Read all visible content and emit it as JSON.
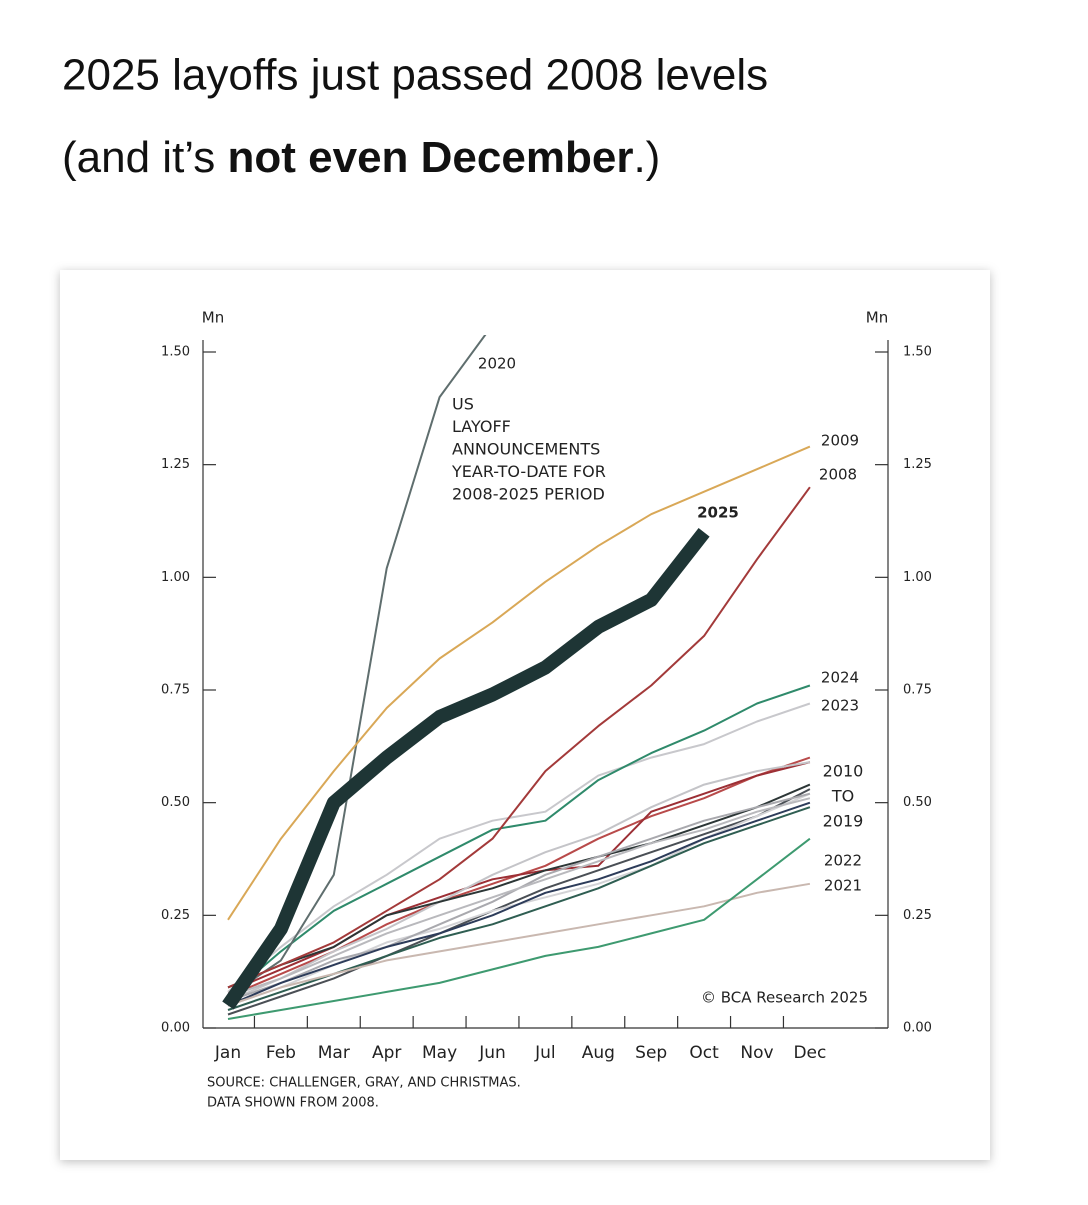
{
  "headline": {
    "line1": "2025 layoffs just passed 2008 levels",
    "line2_before": "(and it’s",
    "line2_bold": "not even December",
    "line2_after": ".)"
  },
  "chart_data": {
    "type": "line",
    "annotation": [
      "US",
      "LAYOFF",
      "ANNOUNCEMENTS",
      "YEAR-TO-DATE FOR",
      "2008-2025 PERIOD"
    ],
    "group_label": [
      "2010",
      "TO",
      "2019"
    ],
    "y_unit": "Mn",
    "y2_unit": "Mn",
    "source": [
      "SOURCE: CHALLENGER, GRAY, AND CHRISTMAS.",
      "DATA SHOWN FROM 2008."
    ],
    "credit": "© BCA Research 2025",
    "categories": [
      "Jan",
      "Feb",
      "Mar",
      "Apr",
      "May",
      "Jun",
      "Jul",
      "Aug",
      "Sep",
      "Oct",
      "Nov",
      "Dec"
    ],
    "ylim": [
      0,
      1.5
    ],
    "y2lim": [
      0,
      1.5
    ],
    "yticks": [
      {
        "value": 0,
        "label": "0.00"
      },
      0.25,
      {
        "value": 0.5,
        "label": "0.50"
      },
      0.75,
      {
        "value": 1,
        "label": "1.00"
      },
      1.25,
      {
        "value": 1.5,
        "label": "1.50"
      }
    ],
    "y2ticks": [
      {
        "value": 0,
        "label": "0.00"
      },
      0.25,
      {
        "value": 0.5,
        "label": "0.50"
      },
      0.75,
      {
        "value": 1,
        "label": "1.00"
      },
      1.25,
      {
        "value": 1.5,
        "label": "1.50"
      }
    ],
    "series": [
      {
        "color": "#4a4f55",
        "values": [
          0.03,
          0.07,
          0.11,
          0.16,
          0.21,
          0.26,
          0.31,
          0.35,
          0.39,
          0.43,
          0.47,
          0.53
        ]
      },
      {
        "color": "#b84a4a",
        "values": [
          0.07,
          0.12,
          0.17,
          0.23,
          0.28,
          0.32,
          0.36,
          0.42,
          0.47,
          0.51,
          0.56,
          0.6
        ]
      },
      {
        "color": "#9c2f35",
        "values": [
          0.08,
          0.13,
          0.18,
          0.25,
          0.29,
          0.33,
          0.35,
          0.36,
          0.48,
          0.52,
          0.56,
          0.59
        ]
      },
      {
        "color": "#c4c4c8",
        "values": [
          0.06,
          0.11,
          0.17,
          0.22,
          0.28,
          0.34,
          0.39,
          0.43,
          0.49,
          0.54,
          0.57,
          0.59
        ]
      },
      {
        "color": "#2c3636",
        "values": [
          0.09,
          0.14,
          0.18,
          0.25,
          0.28,
          0.31,
          0.35,
          0.38,
          0.41,
          0.45,
          0.49,
          0.54
        ]
      },
      {
        "color": "#d3d3d6",
        "values": [
          0.05,
          0.09,
          0.14,
          0.19,
          0.22,
          0.26,
          0.29,
          0.32,
          0.36,
          0.42,
          0.47,
          0.52
        ]
      },
      {
        "color": "#2f5e52",
        "values": [
          0.04,
          0.08,
          0.12,
          0.16,
          0.2,
          0.23,
          0.27,
          0.31,
          0.36,
          0.41,
          0.45,
          0.49
        ]
      },
      {
        "color": "#a9a9ae",
        "values": [
          0.06,
          0.1,
          0.15,
          0.18,
          0.23,
          0.28,
          0.34,
          0.38,
          0.42,
          0.46,
          0.49,
          0.52
        ]
      },
      {
        "color": "#2d3c5a",
        "values": [
          0.05,
          0.1,
          0.14,
          0.18,
          0.21,
          0.25,
          0.3,
          0.33,
          0.37,
          0.42,
          0.46,
          0.5
        ]
      },
      {
        "color": "#b9b9bd",
        "values": [
          0.07,
          0.11,
          0.16,
          0.21,
          0.25,
          0.29,
          0.33,
          0.37,
          0.41,
          0.44,
          0.48,
          0.51
        ]
      },
      {
        "name": "2021",
        "color": "#c9b8b0",
        "values": [
          0.05,
          0.09,
          0.12,
          0.15,
          0.17,
          0.19,
          0.21,
          0.23,
          0.25,
          0.27,
          0.3,
          0.32
        ]
      },
      {
        "name": "2022",
        "color": "#3e9a70",
        "values": [
          0.02,
          0.04,
          0.06,
          0.08,
          0.1,
          0.13,
          0.16,
          0.18,
          0.21,
          0.24,
          0.33,
          0.42
        ]
      },
      {
        "name": "2023",
        "color": "#c8c8cc",
        "values": [
          0.08,
          0.18,
          0.27,
          0.34,
          0.42,
          0.46,
          0.48,
          0.56,
          0.6,
          0.63,
          0.68,
          0.72
        ]
      },
      {
        "name": "2024",
        "color": "#2f8a6b",
        "values": [
          0.07,
          0.17,
          0.26,
          0.32,
          0.38,
          0.44,
          0.46,
          0.55,
          0.61,
          0.66,
          0.72,
          0.76
        ]
      },
      {
        "name": "2020",
        "color": "#5f6e6e",
        "values": [
          0.07,
          0.15,
          0.34,
          1.02,
          1.4,
          1.56,
          null,
          null,
          null,
          null,
          null,
          null
        ]
      },
      {
        "name": "2008",
        "color": "#a33a3a",
        "values": [
          0.09,
          0.14,
          0.19,
          0.26,
          0.33,
          0.42,
          0.57,
          0.67,
          0.76,
          0.87,
          1.04,
          1.2
        ]
      },
      {
        "name": "2009",
        "color": "#d9a857",
        "values": [
          0.24,
          0.42,
          0.57,
          0.71,
          0.82,
          0.9,
          0.99,
          1.07,
          1.14,
          1.19,
          1.24,
          1.29
        ]
      },
      {
        "name": "2025",
        "color": "#1e3535",
        "values": [
          0.05,
          0.22,
          0.5,
          0.6,
          0.69,
          0.74,
          0.8,
          0.89,
          0.95,
          1.1,
          null,
          null
        ]
      }
    ]
  }
}
